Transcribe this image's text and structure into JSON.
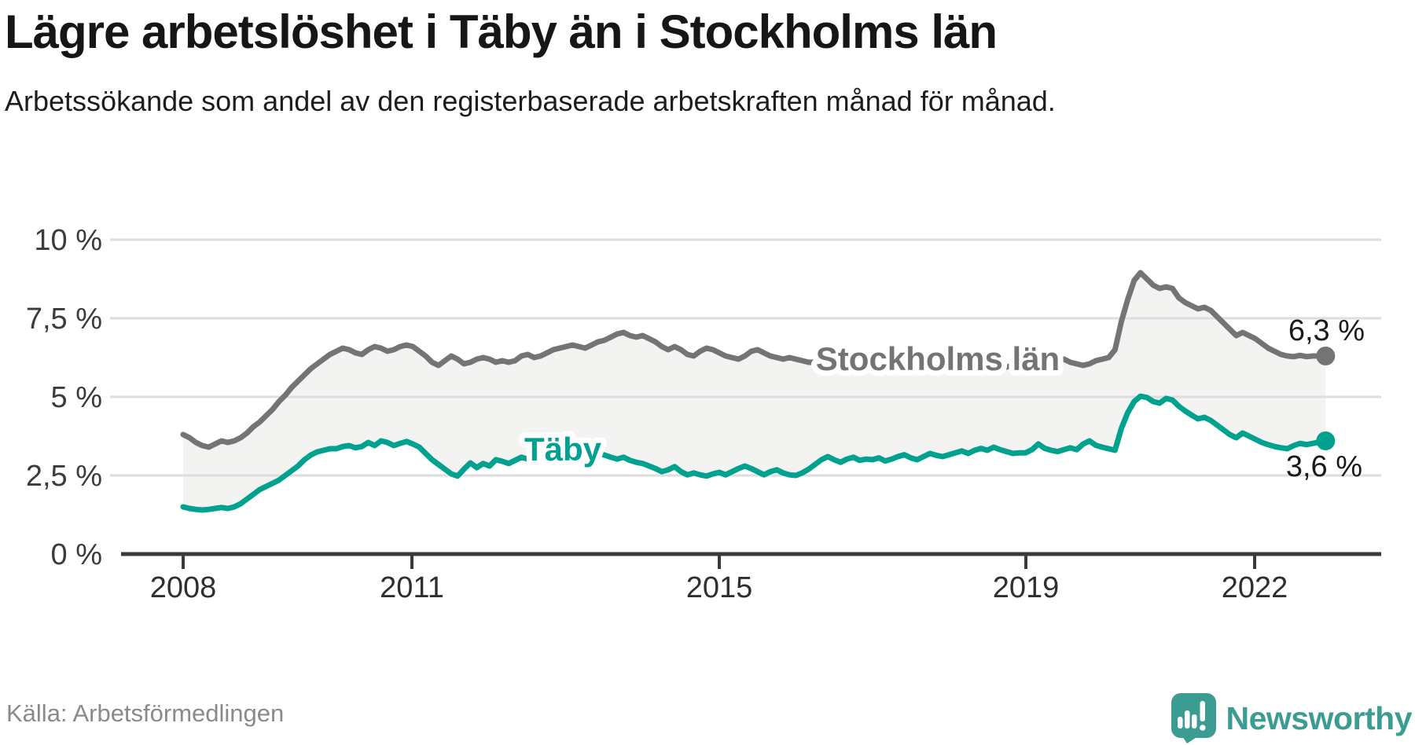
{
  "header": {
    "title": "Lägre arbetslöshet i Täby än i Stockholms län",
    "subtitle": "Arbetssökande som andel av den registerbaserade arbetskraften månad för månad."
  },
  "chart_data": {
    "type": "line",
    "unit": "percent of registered labour force",
    "frequency": "monthly",
    "x_range": [
      "2008-01",
      "2022-12"
    ],
    "ylim": [
      0,
      10
    ],
    "grid": true,
    "legend_position": "inline-labels",
    "y_ticks": [
      "10 %",
      "7,5 %",
      "5 %",
      "2,5 %",
      "0 %"
    ],
    "y_tick_values": [
      10,
      7.5,
      5,
      2.5,
      0
    ],
    "x_ticks": [
      "2008",
      "2011",
      "2015",
      "2019",
      "2022"
    ],
    "x_tick_years": [
      2008,
      2011,
      2015,
      2019,
      2022
    ],
    "band_fill": "#f3f3f2",
    "grid_color": "#dedede",
    "axis_color": "#3a3a3c",
    "series": [
      {
        "name": "Stockholms län",
        "color": "#747477",
        "end_label": "6,3 %",
        "end_value": 6.3,
        "values": [
          3.8,
          3.7,
          3.55,
          3.45,
          3.4,
          3.5,
          3.6,
          3.55,
          3.6,
          3.7,
          3.85,
          4.05,
          4.2,
          4.4,
          4.6,
          4.85,
          5.05,
          5.3,
          5.5,
          5.7,
          5.9,
          6.05,
          6.2,
          6.35,
          6.45,
          6.55,
          6.5,
          6.4,
          6.35,
          6.5,
          6.6,
          6.55,
          6.45,
          6.5,
          6.6,
          6.65,
          6.6,
          6.45,
          6.3,
          6.1,
          6.0,
          6.15,
          6.3,
          6.2,
          6.05,
          6.1,
          6.2,
          6.25,
          6.2,
          6.1,
          6.15,
          6.1,
          6.15,
          6.3,
          6.35,
          6.25,
          6.3,
          6.4,
          6.5,
          6.55,
          6.6,
          6.65,
          6.6,
          6.55,
          6.65,
          6.75,
          6.8,
          6.9,
          7.0,
          7.05,
          6.95,
          6.9,
          6.95,
          6.85,
          6.75,
          6.6,
          6.5,
          6.6,
          6.5,
          6.35,
          6.3,
          6.45,
          6.55,
          6.5,
          6.4,
          6.3,
          6.25,
          6.2,
          6.3,
          6.45,
          6.5,
          6.4,
          6.3,
          6.25,
          6.2,
          6.25,
          6.2,
          6.15,
          6.1,
          6.1,
          6.15,
          6.25,
          6.3,
          6.2,
          6.15,
          6.1,
          6.15,
          6.2,
          6.15,
          6.1,
          6.05,
          6.05,
          6.1,
          6.2,
          6.25,
          6.15,
          6.1,
          6.05,
          6.1,
          6.15,
          6.1,
          6.05,
          6.0,
          5.95,
          6.0,
          6.1,
          6.15,
          6.05,
          6.0,
          5.95,
          6.0,
          6.05,
          6.1,
          6.05,
          6.0,
          6.0,
          6.05,
          6.15,
          6.2,
          6.1,
          6.05,
          6.0,
          6.05,
          6.15,
          6.2,
          6.25,
          6.5,
          7.4,
          8.1,
          8.7,
          8.95,
          8.75,
          8.55,
          8.45,
          8.5,
          8.45,
          8.15,
          8.0,
          7.9,
          7.8,
          7.85,
          7.75,
          7.55,
          7.35,
          7.15,
          6.95,
          7.05,
          6.95,
          6.85,
          6.7,
          6.55,
          6.45,
          6.35,
          6.3,
          6.28,
          6.32,
          6.28,
          6.3,
          6.3,
          6.3
        ]
      },
      {
        "name": "Täby",
        "color": "#00a18f",
        "end_label": "3,6 %",
        "end_value": 3.6,
        "values": [
          1.5,
          1.45,
          1.42,
          1.4,
          1.42,
          1.45,
          1.48,
          1.45,
          1.5,
          1.6,
          1.75,
          1.9,
          2.05,
          2.15,
          2.25,
          2.35,
          2.5,
          2.65,
          2.8,
          3.0,
          3.15,
          3.25,
          3.3,
          3.35,
          3.35,
          3.42,
          3.45,
          3.38,
          3.42,
          3.55,
          3.45,
          3.6,
          3.55,
          3.45,
          3.52,
          3.58,
          3.5,
          3.4,
          3.2,
          3.0,
          2.85,
          2.7,
          2.55,
          2.48,
          2.7,
          2.9,
          2.75,
          2.88,
          2.8,
          3.0,
          2.95,
          2.88,
          2.98,
          3.08,
          3.02,
          2.95,
          3.05,
          3.12,
          3.08,
          3.15,
          3.1,
          3.18,
          3.12,
          3.05,
          3.12,
          3.2,
          3.15,
          3.08,
          3.02,
          3.08,
          2.98,
          2.92,
          2.88,
          2.8,
          2.72,
          2.62,
          2.68,
          2.78,
          2.62,
          2.52,
          2.58,
          2.52,
          2.48,
          2.55,
          2.6,
          2.52,
          2.62,
          2.72,
          2.8,
          2.72,
          2.62,
          2.52,
          2.62,
          2.68,
          2.58,
          2.52,
          2.5,
          2.58,
          2.7,
          2.85,
          3.0,
          3.1,
          3.0,
          2.92,
          3.02,
          3.08,
          2.98,
          3.02,
          3.0,
          3.06,
          2.96,
          3.02,
          3.1,
          3.16,
          3.06,
          3.0,
          3.1,
          3.2,
          3.14,
          3.1,
          3.16,
          3.22,
          3.28,
          3.2,
          3.3,
          3.36,
          3.3,
          3.4,
          3.32,
          3.26,
          3.2,
          3.22,
          3.22,
          3.32,
          3.5,
          3.36,
          3.3,
          3.26,
          3.32,
          3.38,
          3.32,
          3.5,
          3.6,
          3.46,
          3.4,
          3.35,
          3.3,
          4.0,
          4.5,
          4.85,
          5.02,
          4.98,
          4.85,
          4.8,
          4.95,
          4.9,
          4.7,
          4.55,
          4.42,
          4.3,
          4.35,
          4.25,
          4.1,
          3.95,
          3.8,
          3.7,
          3.85,
          3.75,
          3.65,
          3.55,
          3.48,
          3.42,
          3.38,
          3.35,
          3.45,
          3.52,
          3.48,
          3.52,
          3.56,
          3.6
        ]
      }
    ]
  },
  "footer": {
    "source": "Källa: Arbetsförmedlingen",
    "brand": "Newsworthy",
    "brand_color": "#3b9c92"
  }
}
